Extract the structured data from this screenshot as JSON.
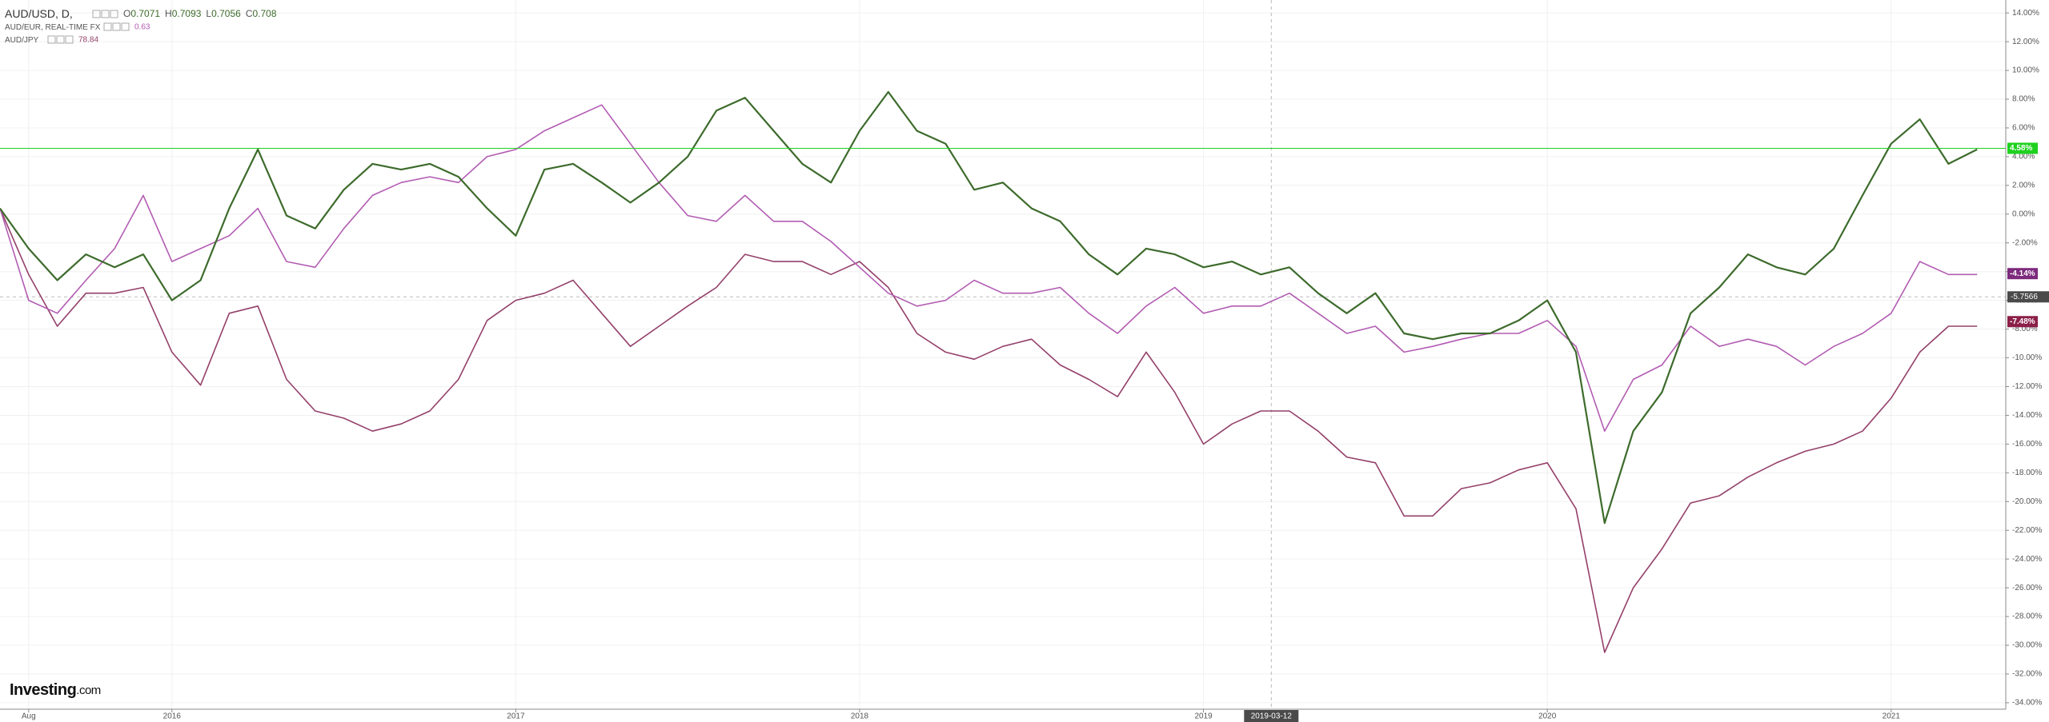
{
  "chart_data": {
    "type": "line",
    "legend": {
      "entries": [
        {
          "name": "AUD/USD, D,",
          "ohlc": [
            {
              "label": "O",
              "value": 0.7071
            },
            {
              "label": "H",
              "value": 0.7093
            },
            {
              "label": "L",
              "value": 0.7056
            },
            {
              "label": "C",
              "value": 0.708
            }
          ]
        },
        {
          "name": "AUD/EUR, REAL-TIME FX",
          "value": 0.63
        },
        {
          "name": "AUD/JPY",
          "value": 78.84
        }
      ]
    },
    "brand": "Investing",
    "brand_suffix": ".com",
    "x": [
      "2015-07",
      "2015-08",
      "2015-09",
      "2015-10",
      "2015-11",
      "2015-12",
      "2016-01",
      "2016-02",
      "2016-03",
      "2016-04",
      "2016-05",
      "2016-06",
      "2016-07",
      "2016-08",
      "2016-09",
      "2016-10",
      "2016-11",
      "2016-12",
      "2017-01",
      "2017-02",
      "2017-03",
      "2017-04",
      "2017-05",
      "2017-06",
      "2017-07",
      "2017-08",
      "2017-09",
      "2017-10",
      "2017-11",
      "2017-12",
      "2018-01",
      "2018-02",
      "2018-03",
      "2018-04",
      "2018-05",
      "2018-06",
      "2018-07",
      "2018-08",
      "2018-09",
      "2018-10",
      "2018-11",
      "2018-12",
      "2019-01",
      "2019-02",
      "2019-03",
      "2019-04",
      "2019-05",
      "2019-06",
      "2019-07",
      "2019-08",
      "2019-09",
      "2019-10",
      "2019-11",
      "2019-12",
      "2020-01",
      "2020-02",
      "2020-03",
      "2020-04",
      "2020-05",
      "2020-06",
      "2020-07",
      "2020-08",
      "2020-09",
      "2020-10",
      "2020-11",
      "2020-12",
      "2021-01",
      "2021-02",
      "2021-03",
      "2021-04"
    ],
    "series": [
      {
        "name": "AUD/USD",
        "color": "#3d6b2c",
        "width": 2.2,
        "last_value": {
          "value": 4.58,
          "label": "4.58%"
        },
        "last_color": "#1fd11f",
        "price_line": true,
        "values": [
          0.4,
          -2.4,
          -4.6,
          -2.8,
          -3.7,
          -2.8,
          -6,
          -4.6,
          0.4,
          4.5,
          -0.1,
          -1,
          1.7,
          3.5,
          3.1,
          3.5,
          2.6,
          0.4,
          -1.5,
          3.1,
          3.5,
          2.2,
          0.8,
          2.2,
          4,
          7.2,
          8.1,
          5.8,
          3.5,
          2.2,
          5.8,
          8.5,
          5.8,
          4.9,
          1.7,
          2.2,
          0.4,
          -0.5,
          -2.8,
          -4.2,
          -2.4,
          -2.8,
          -3.7,
          -3.3,
          -4.2,
          -3.7,
          -5.5,
          -6.9,
          -5.5,
          -8.3,
          -8.7,
          -8.3,
          -8.3,
          -7.4,
          -6,
          -9.6,
          -21.5,
          -15.1,
          -12.4,
          -6.9,
          -5.1,
          -2.8,
          -3.7,
          -4.2,
          -2.4,
          1.3,
          4.9,
          6.6,
          3.5,
          4.5
        ]
      },
      {
        "name": "AUD/EUR",
        "color": "#b25cb2",
        "width": 1.6,
        "last_value": {
          "value": -4.14,
          "label": "-4.14%"
        },
        "last_color": "#7d2a7d",
        "values": [
          0.4,
          -6,
          -6.9,
          -4.6,
          -2.4,
          1.3,
          -3.3,
          -2.4,
          -1.5,
          0.4,
          -3.3,
          -3.7,
          -1,
          1.3,
          2.2,
          2.6,
          2.2,
          4,
          4.5,
          5.8,
          6.7,
          7.6,
          4.9,
          2.2,
          -0.1,
          -0.5,
          1.3,
          -0.5,
          -0.5,
          -1.9,
          -3.7,
          -5.5,
          -6.4,
          -6,
          -4.6,
          -5.5,
          -5.5,
          -5.1,
          -6.9,
          -8.3,
          -6.4,
          -5.1,
          -6.9,
          -6.4,
          -6.4,
          -5.5,
          -6.9,
          -8.3,
          -7.8,
          -9.6,
          -9.2,
          -8.7,
          -8.3,
          -8.3,
          -7.4,
          -9.2,
          -15.1,
          -11.5,
          -10.5,
          -7.8,
          -9.2,
          -8.7,
          -9.2,
          -10.5,
          -9.2,
          -8.3,
          -6.9,
          -3.3,
          -4.2,
          -4.2
        ]
      },
      {
        "name": "AUD/JPY",
        "color": "#94406a",
        "width": 1.6,
        "last_value": {
          "value": -7.48,
          "label": "-7.48%"
        },
        "last_color": "#8c1f47",
        "values": [
          0.4,
          -4.2,
          -7.8,
          -5.5,
          -5.5,
          -5.1,
          -9.6,
          -11.9,
          -6.9,
          -6.4,
          -11.5,
          -13.7,
          -14.2,
          -15.1,
          -14.6,
          -13.7,
          -11.5,
          -7.4,
          -6,
          -5.5,
          -4.6,
          -6.9,
          -9.2,
          -7.8,
          -6.4,
          -5.1,
          -2.8,
          -3.3,
          -3.3,
          -4.2,
          -3.3,
          -5.1,
          -8.3,
          -9.6,
          -10.1,
          -9.2,
          -8.7,
          -10.5,
          -11.5,
          -12.7,
          -9.6,
          -12.4,
          -16,
          -14.6,
          -13.7,
          -13.7,
          -15.1,
          -16.9,
          -17.3,
          -21,
          -21,
          -19.1,
          -18.7,
          -17.8,
          -17.3,
          -20.5,
          -30.5,
          -26,
          -23.3,
          -20.1,
          -19.6,
          -18.3,
          -17.3,
          -16.5,
          -16,
          -15.1,
          -12.8,
          -9.6,
          -7.8,
          -7.8
        ]
      }
    ],
    "xlim": [
      "2015-07",
      "2021-05"
    ],
    "xticks": [
      {
        "value": "2015-08",
        "label": "Aug"
      },
      {
        "value": "2016-01",
        "label": "2016"
      },
      {
        "value": "2017-01",
        "label": "2017"
      },
      {
        "value": "2018-01",
        "label": "2018"
      },
      {
        "value": "2019-01",
        "label": "2019"
      },
      {
        "value": "2020-01",
        "label": "2020"
      },
      {
        "value": "2021-01",
        "label": "2021"
      }
    ],
    "ylim": [
      -34.45,
      14.9
    ],
    "yticks": [
      {
        "value": -34,
        "label": "-34.00%"
      },
      {
        "value": -32,
        "label": "-32.00%"
      },
      {
        "value": -30,
        "label": "-30.00%"
      },
      {
        "value": -28,
        "label": "-28.00%"
      },
      {
        "value": -26,
        "label": "-26.00%"
      },
      {
        "value": -24,
        "label": "-24.00%"
      },
      {
        "value": -22,
        "label": "-22.00%"
      },
      {
        "value": -20,
        "label": "-20.00%"
      },
      {
        "value": -18,
        "label": "-18.00%"
      },
      {
        "value": -16,
        "label": "-16.00%"
      },
      {
        "value": -14,
        "label": "-14.00%"
      },
      {
        "value": -12,
        "label": "-12.00%"
      },
      {
        "value": -10,
        "label": "-10.00%"
      },
      {
        "value": -8,
        "label": "-8.00%"
      },
      {
        "value": -6,
        "label": "-6.00%"
      },
      {
        "value": -4,
        "label": "-4.00%"
      },
      {
        "value": -2,
        "label": "-2.00%"
      },
      {
        "value": 0,
        "label": "0.00%"
      },
      {
        "value": 2,
        "label": "2.00%"
      },
      {
        "value": 4,
        "label": "4.00%"
      },
      {
        "value": 6,
        "label": "6.00%"
      },
      {
        "value": 8,
        "label": "8.00%"
      },
      {
        "value": 10,
        "label": "10.00%"
      },
      {
        "value": 12,
        "label": "12.00%"
      },
      {
        "value": 14,
        "label": "14.00%"
      }
    ],
    "grid": true,
    "crosshair": {
      "x": "2019-03-12",
      "y": -5.7566
    }
  }
}
